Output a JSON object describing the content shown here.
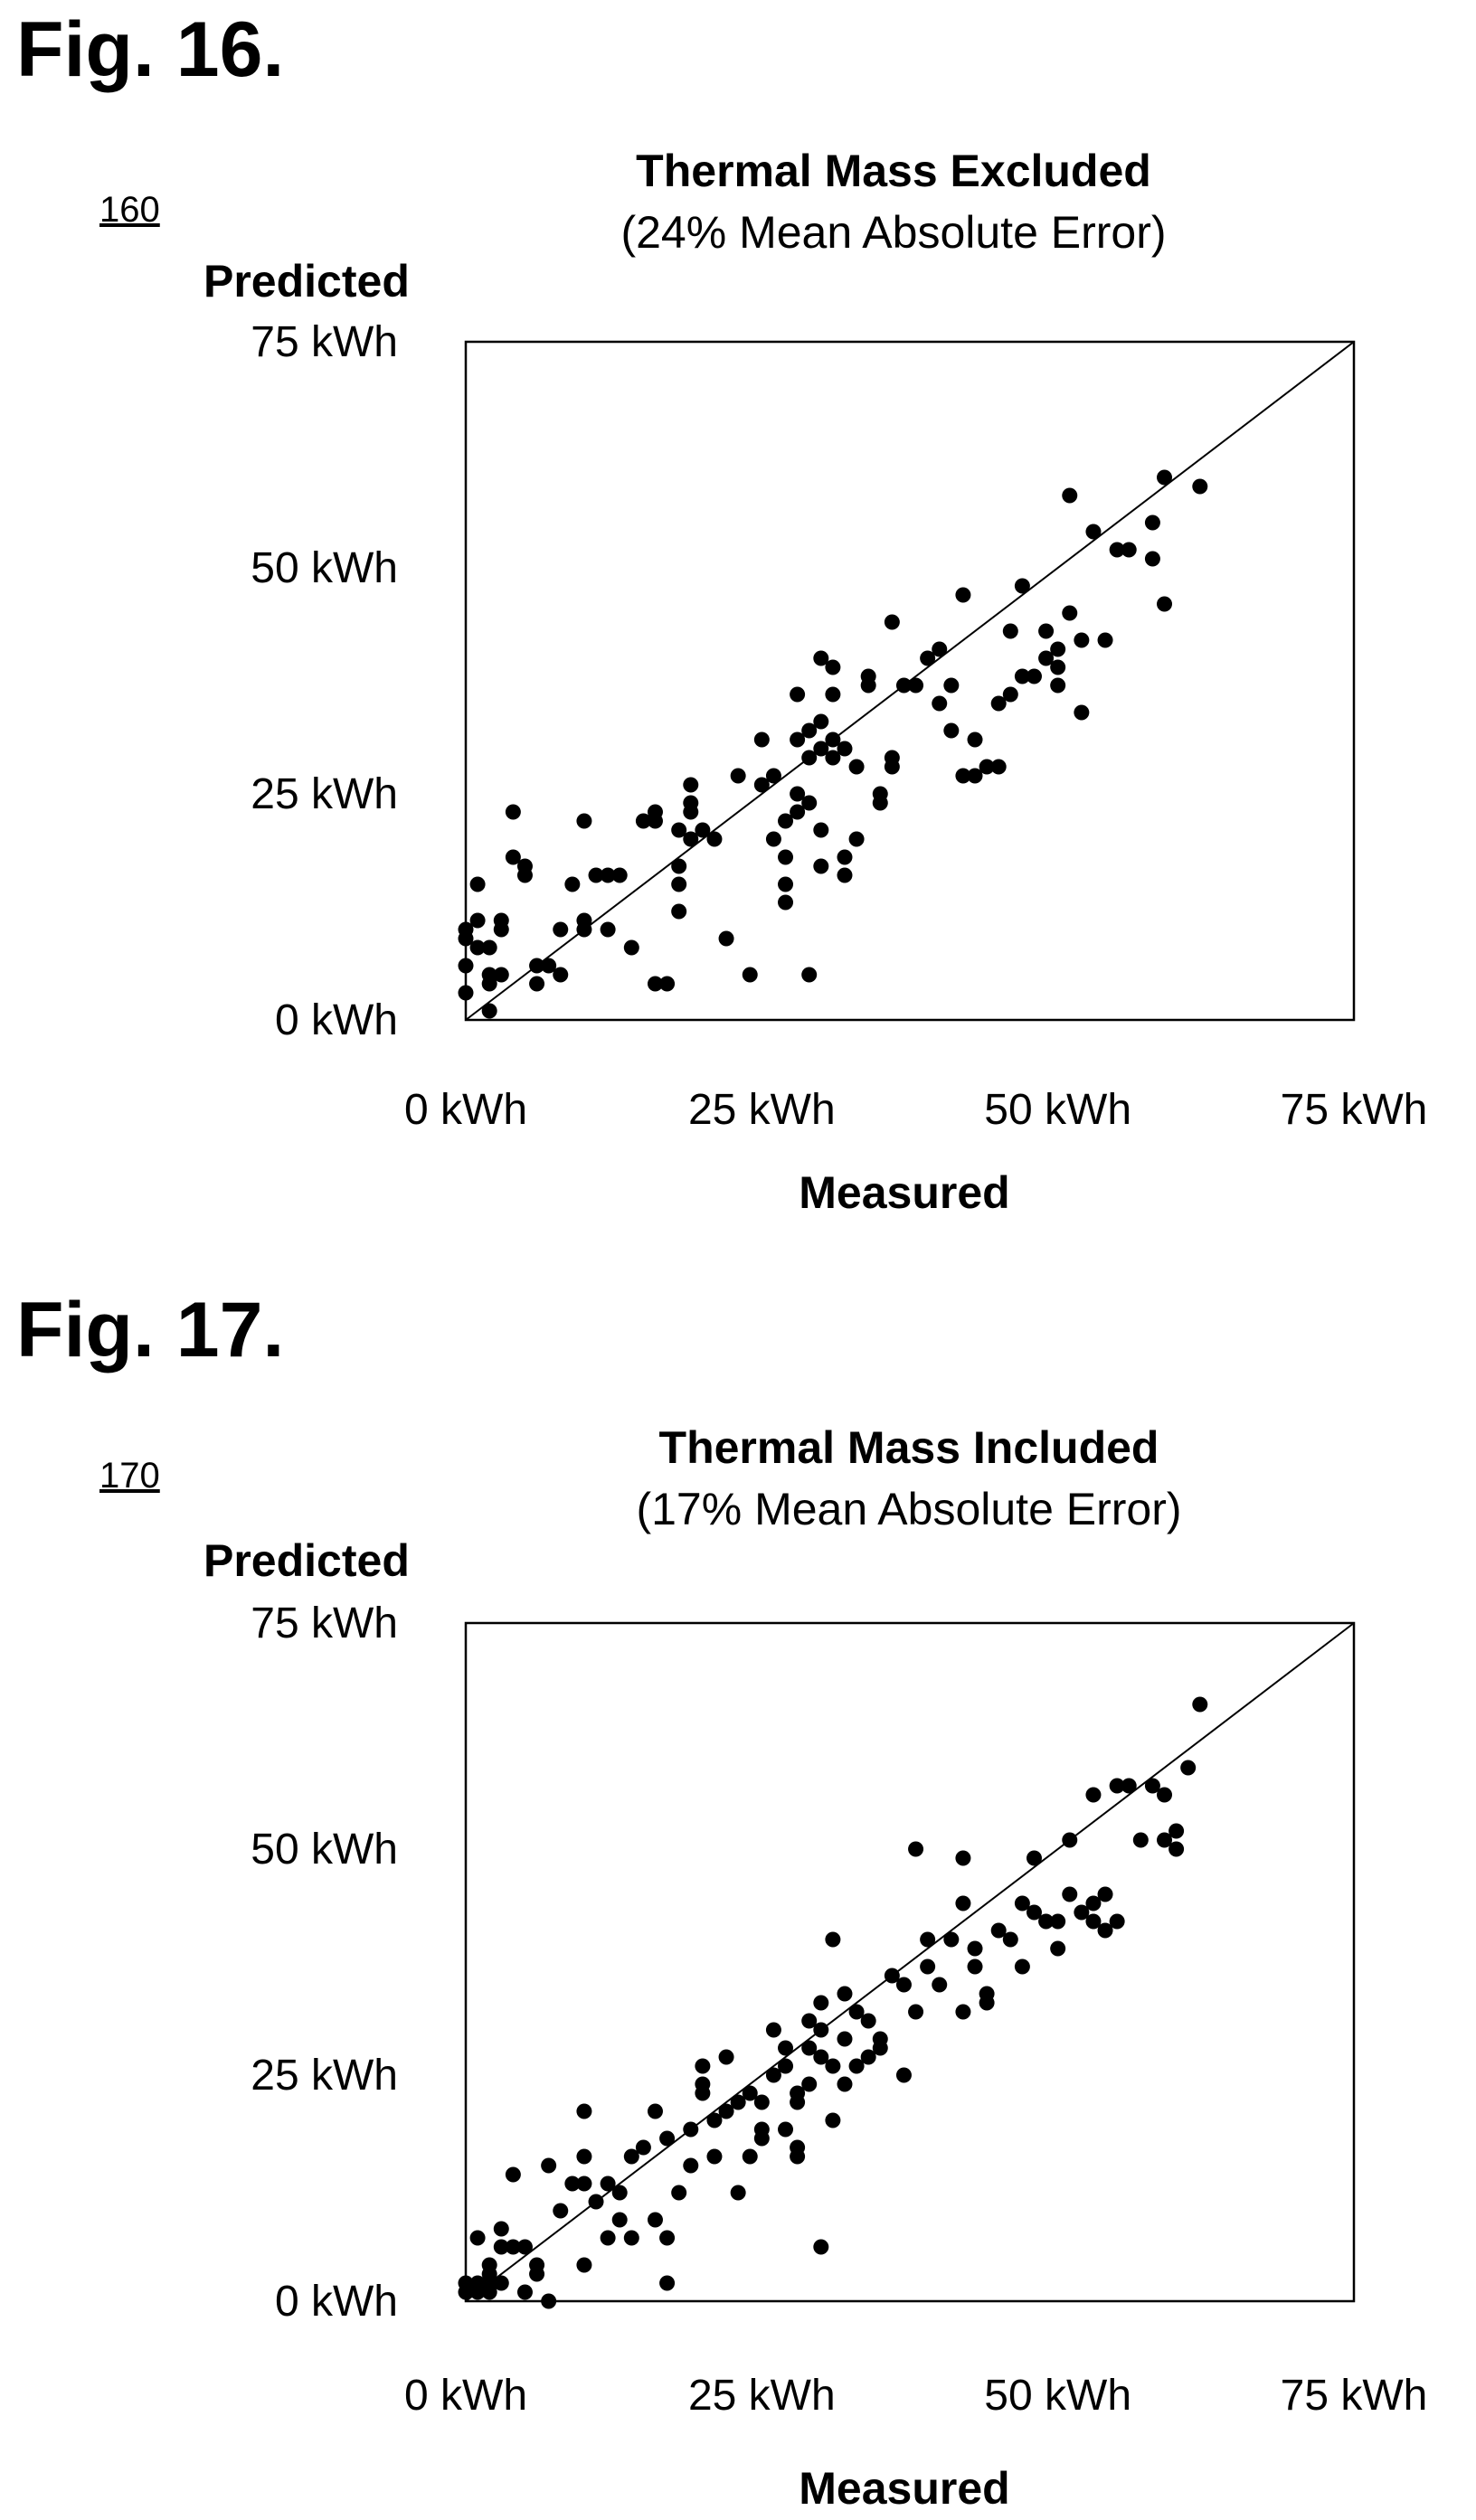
{
  "chart_data": [
    {
      "type": "scatter",
      "figure_label": "Fig. 16.",
      "reference_number": "160",
      "title": "Thermal Mass Excluded",
      "subtitle": "(24% Mean Absolute Error)",
      "xlabel": "Measured",
      "ylabel": "Predicted",
      "xlim": [
        0,
        75
      ],
      "ylim": [
        0,
        75
      ],
      "x_ticks": [
        "0 kWh",
        "25 kWh",
        "50 kWh",
        "75 kWh"
      ],
      "y_ticks": [
        "0 kWh",
        "25 kWh",
        "50 kWh",
        "75 kWh"
      ],
      "grid": false,
      "reference_line": "y = x",
      "points": [
        [
          0,
          3
        ],
        [
          0,
          6
        ],
        [
          0,
          9
        ],
        [
          0,
          10
        ],
        [
          1,
          8
        ],
        [
          1,
          15
        ],
        [
          1,
          11
        ],
        [
          2,
          5
        ],
        [
          2,
          4
        ],
        [
          2,
          8
        ],
        [
          2,
          1
        ],
        [
          3,
          10
        ],
        [
          3,
          5
        ],
        [
          3,
          11
        ],
        [
          4,
          23
        ],
        [
          4,
          18
        ],
        [
          5,
          16
        ],
        [
          5,
          17
        ],
        [
          6,
          6
        ],
        [
          6,
          4
        ],
        [
          7,
          6
        ],
        [
          8,
          5
        ],
        [
          8,
          10
        ],
        [
          9,
          15
        ],
        [
          10,
          22
        ],
        [
          10,
          11
        ],
        [
          10,
          10
        ],
        [
          11,
          16
        ],
        [
          12,
          16
        ],
        [
          12,
          10
        ],
        [
          13,
          16
        ],
        [
          14,
          8
        ],
        [
          15,
          22
        ],
        [
          16,
          23
        ],
        [
          16,
          4
        ],
        [
          16,
          22
        ],
        [
          17,
          4
        ],
        [
          18,
          15
        ],
        [
          18,
          12
        ],
        [
          18,
          17
        ],
        [
          18,
          21
        ],
        [
          19,
          20
        ],
        [
          19,
          24
        ],
        [
          19,
          26
        ],
        [
          19,
          23
        ],
        [
          20,
          21
        ],
        [
          21,
          20
        ],
        [
          22,
          9
        ],
        [
          23,
          27
        ],
        [
          24,
          5
        ],
        [
          25,
          31
        ],
        [
          25,
          26
        ],
        [
          26,
          27
        ],
        [
          26,
          20
        ],
        [
          27,
          15
        ],
        [
          27,
          13
        ],
        [
          27,
          18
        ],
        [
          27,
          22
        ],
        [
          28,
          36
        ],
        [
          28,
          25
        ],
        [
          28,
          23
        ],
        [
          28,
          31
        ],
        [
          29,
          29
        ],
        [
          29,
          32
        ],
        [
          29,
          24
        ],
        [
          29,
          5
        ],
        [
          30,
          30
        ],
        [
          30,
          33
        ],
        [
          30,
          21
        ],
        [
          30,
          17
        ],
        [
          30,
          40
        ],
        [
          31,
          36
        ],
        [
          31,
          39
        ],
        [
          31,
          31
        ],
        [
          31,
          29
        ],
        [
          32,
          30
        ],
        [
          32,
          16
        ],
        [
          32,
          18
        ],
        [
          33,
          20
        ],
        [
          33,
          28
        ],
        [
          34,
          37
        ],
        [
          34,
          38
        ],
        [
          35,
          24
        ],
        [
          35,
          25
        ],
        [
          36,
          28
        ],
        [
          36,
          29
        ],
        [
          36,
          44
        ],
        [
          37,
          37
        ],
        [
          38,
          37
        ],
        [
          39,
          40
        ],
        [
          40,
          41
        ],
        [
          40,
          35
        ],
        [
          41,
          37
        ],
        [
          41,
          32
        ],
        [
          42,
          27
        ],
        [
          42,
          47
        ],
        [
          43,
          27
        ],
        [
          43,
          31
        ],
        [
          44,
          28
        ],
        [
          45,
          28
        ],
        [
          45,
          35
        ],
        [
          46,
          36
        ],
        [
          46,
          43
        ],
        [
          47,
          48
        ],
        [
          47,
          38
        ],
        [
          48,
          38
        ],
        [
          49,
          40
        ],
        [
          49,
          43
        ],
        [
          50,
          39
        ],
        [
          50,
          37
        ],
        [
          50,
          41
        ],
        [
          51,
          45
        ],
        [
          51,
          58
        ],
        [
          52,
          42
        ],
        [
          52,
          34
        ],
        [
          53,
          54
        ],
        [
          54,
          42
        ],
        [
          55,
          52
        ],
        [
          56,
          52
        ],
        [
          58,
          55
        ],
        [
          58,
          51
        ],
        [
          59,
          46
        ],
        [
          59,
          60
        ],
        [
          62,
          59
        ]
      ]
    },
    {
      "type": "scatter",
      "figure_label": "Fig. 17.",
      "reference_number": "170",
      "title": "Thermal Mass Included",
      "subtitle": "(17% Mean Absolute Error)",
      "xlabel": "Measured",
      "ylabel": "Predicted",
      "xlim": [
        0,
        75
      ],
      "ylim": [
        0,
        75
      ],
      "x_ticks": [
        "0 kWh",
        "25 kWh",
        "50 kWh",
        "75 kWh"
      ],
      "y_ticks": [
        "0 kWh",
        "25 kWh",
        "50 kWh",
        "75 kWh"
      ],
      "grid": false,
      "reference_line": "y = x",
      "points": [
        [
          0,
          1
        ],
        [
          0,
          2
        ],
        [
          1,
          2
        ],
        [
          1,
          7
        ],
        [
          1,
          1
        ],
        [
          2,
          4
        ],
        [
          2,
          3
        ],
        [
          2,
          2
        ],
        [
          2,
          1
        ],
        [
          3,
          8
        ],
        [
          3,
          2
        ],
        [
          3,
          6
        ],
        [
          4,
          6
        ],
        [
          4,
          14
        ],
        [
          5,
          6
        ],
        [
          5,
          1
        ],
        [
          6,
          4
        ],
        [
          6,
          3
        ],
        [
          7,
          15
        ],
        [
          7,
          0
        ],
        [
          8,
          10
        ],
        [
          9,
          13
        ],
        [
          10,
          13
        ],
        [
          10,
          4
        ],
        [
          10,
          16
        ],
        [
          10,
          21
        ],
        [
          11,
          11
        ],
        [
          12,
          13
        ],
        [
          12,
          7
        ],
        [
          13,
          12
        ],
        [
          13,
          9
        ],
        [
          14,
          16
        ],
        [
          14,
          7
        ],
        [
          15,
          17
        ],
        [
          16,
          21
        ],
        [
          16,
          9
        ],
        [
          17,
          7
        ],
        [
          17,
          18
        ],
        [
          17,
          2
        ],
        [
          18,
          12
        ],
        [
          19,
          19
        ],
        [
          19,
          15
        ],
        [
          20,
          23
        ],
        [
          20,
          26
        ],
        [
          20,
          24
        ],
        [
          21,
          16
        ],
        [
          21,
          20
        ],
        [
          22,
          21
        ],
        [
          22,
          27
        ],
        [
          23,
          12
        ],
        [
          23,
          22
        ],
        [
          24,
          23
        ],
        [
          24,
          16
        ],
        [
          25,
          22
        ],
        [
          25,
          18
        ],
        [
          25,
          19
        ],
        [
          26,
          30
        ],
        [
          26,
          25
        ],
        [
          27,
          26
        ],
        [
          27,
          19
        ],
        [
          27,
          28
        ],
        [
          28,
          23
        ],
        [
          28,
          22
        ],
        [
          28,
          16
        ],
        [
          28,
          17
        ],
        [
          29,
          24
        ],
        [
          29,
          28
        ],
        [
          29,
          31
        ],
        [
          30,
          30
        ],
        [
          30,
          33
        ],
        [
          30,
          27
        ],
        [
          30,
          6
        ],
        [
          31,
          20
        ],
        [
          31,
          40
        ],
        [
          31,
          26
        ],
        [
          32,
          34
        ],
        [
          32,
          29
        ],
        [
          32,
          24
        ],
        [
          33,
          32
        ],
        [
          33,
          26
        ],
        [
          34,
          27
        ],
        [
          34,
          31
        ],
        [
          35,
          29
        ],
        [
          35,
          28
        ],
        [
          36,
          36
        ],
        [
          37,
          35
        ],
        [
          37,
          25
        ],
        [
          38,
          50
        ],
        [
          38,
          32
        ],
        [
          39,
          37
        ],
        [
          39,
          40
        ],
        [
          40,
          35
        ],
        [
          41,
          40
        ],
        [
          42,
          44
        ],
        [
          42,
          32
        ],
        [
          42,
          49
        ],
        [
          43,
          39
        ],
        [
          43,
          37
        ],
        [
          44,
          34
        ],
        [
          44,
          33
        ],
        [
          45,
          41
        ],
        [
          46,
          40
        ],
        [
          47,
          37
        ],
        [
          47,
          44
        ],
        [
          48,
          49
        ],
        [
          48,
          43
        ],
        [
          49,
          42
        ],
        [
          50,
          39
        ],
        [
          50,
          42
        ],
        [
          51,
          45
        ],
        [
          51,
          51
        ],
        [
          52,
          43
        ],
        [
          53,
          44
        ],
        [
          53,
          42
        ],
        [
          53,
          56
        ],
        [
          54,
          41
        ],
        [
          54,
          45
        ],
        [
          55,
          42
        ],
        [
          55,
          57
        ],
        [
          56,
          57
        ],
        [
          57,
          51
        ],
        [
          58,
          57
        ],
        [
          59,
          56
        ],
        [
          59,
          51
        ],
        [
          60,
          52
        ],
        [
          60,
          50
        ],
        [
          61,
          59
        ],
        [
          62,
          66
        ]
      ]
    }
  ]
}
